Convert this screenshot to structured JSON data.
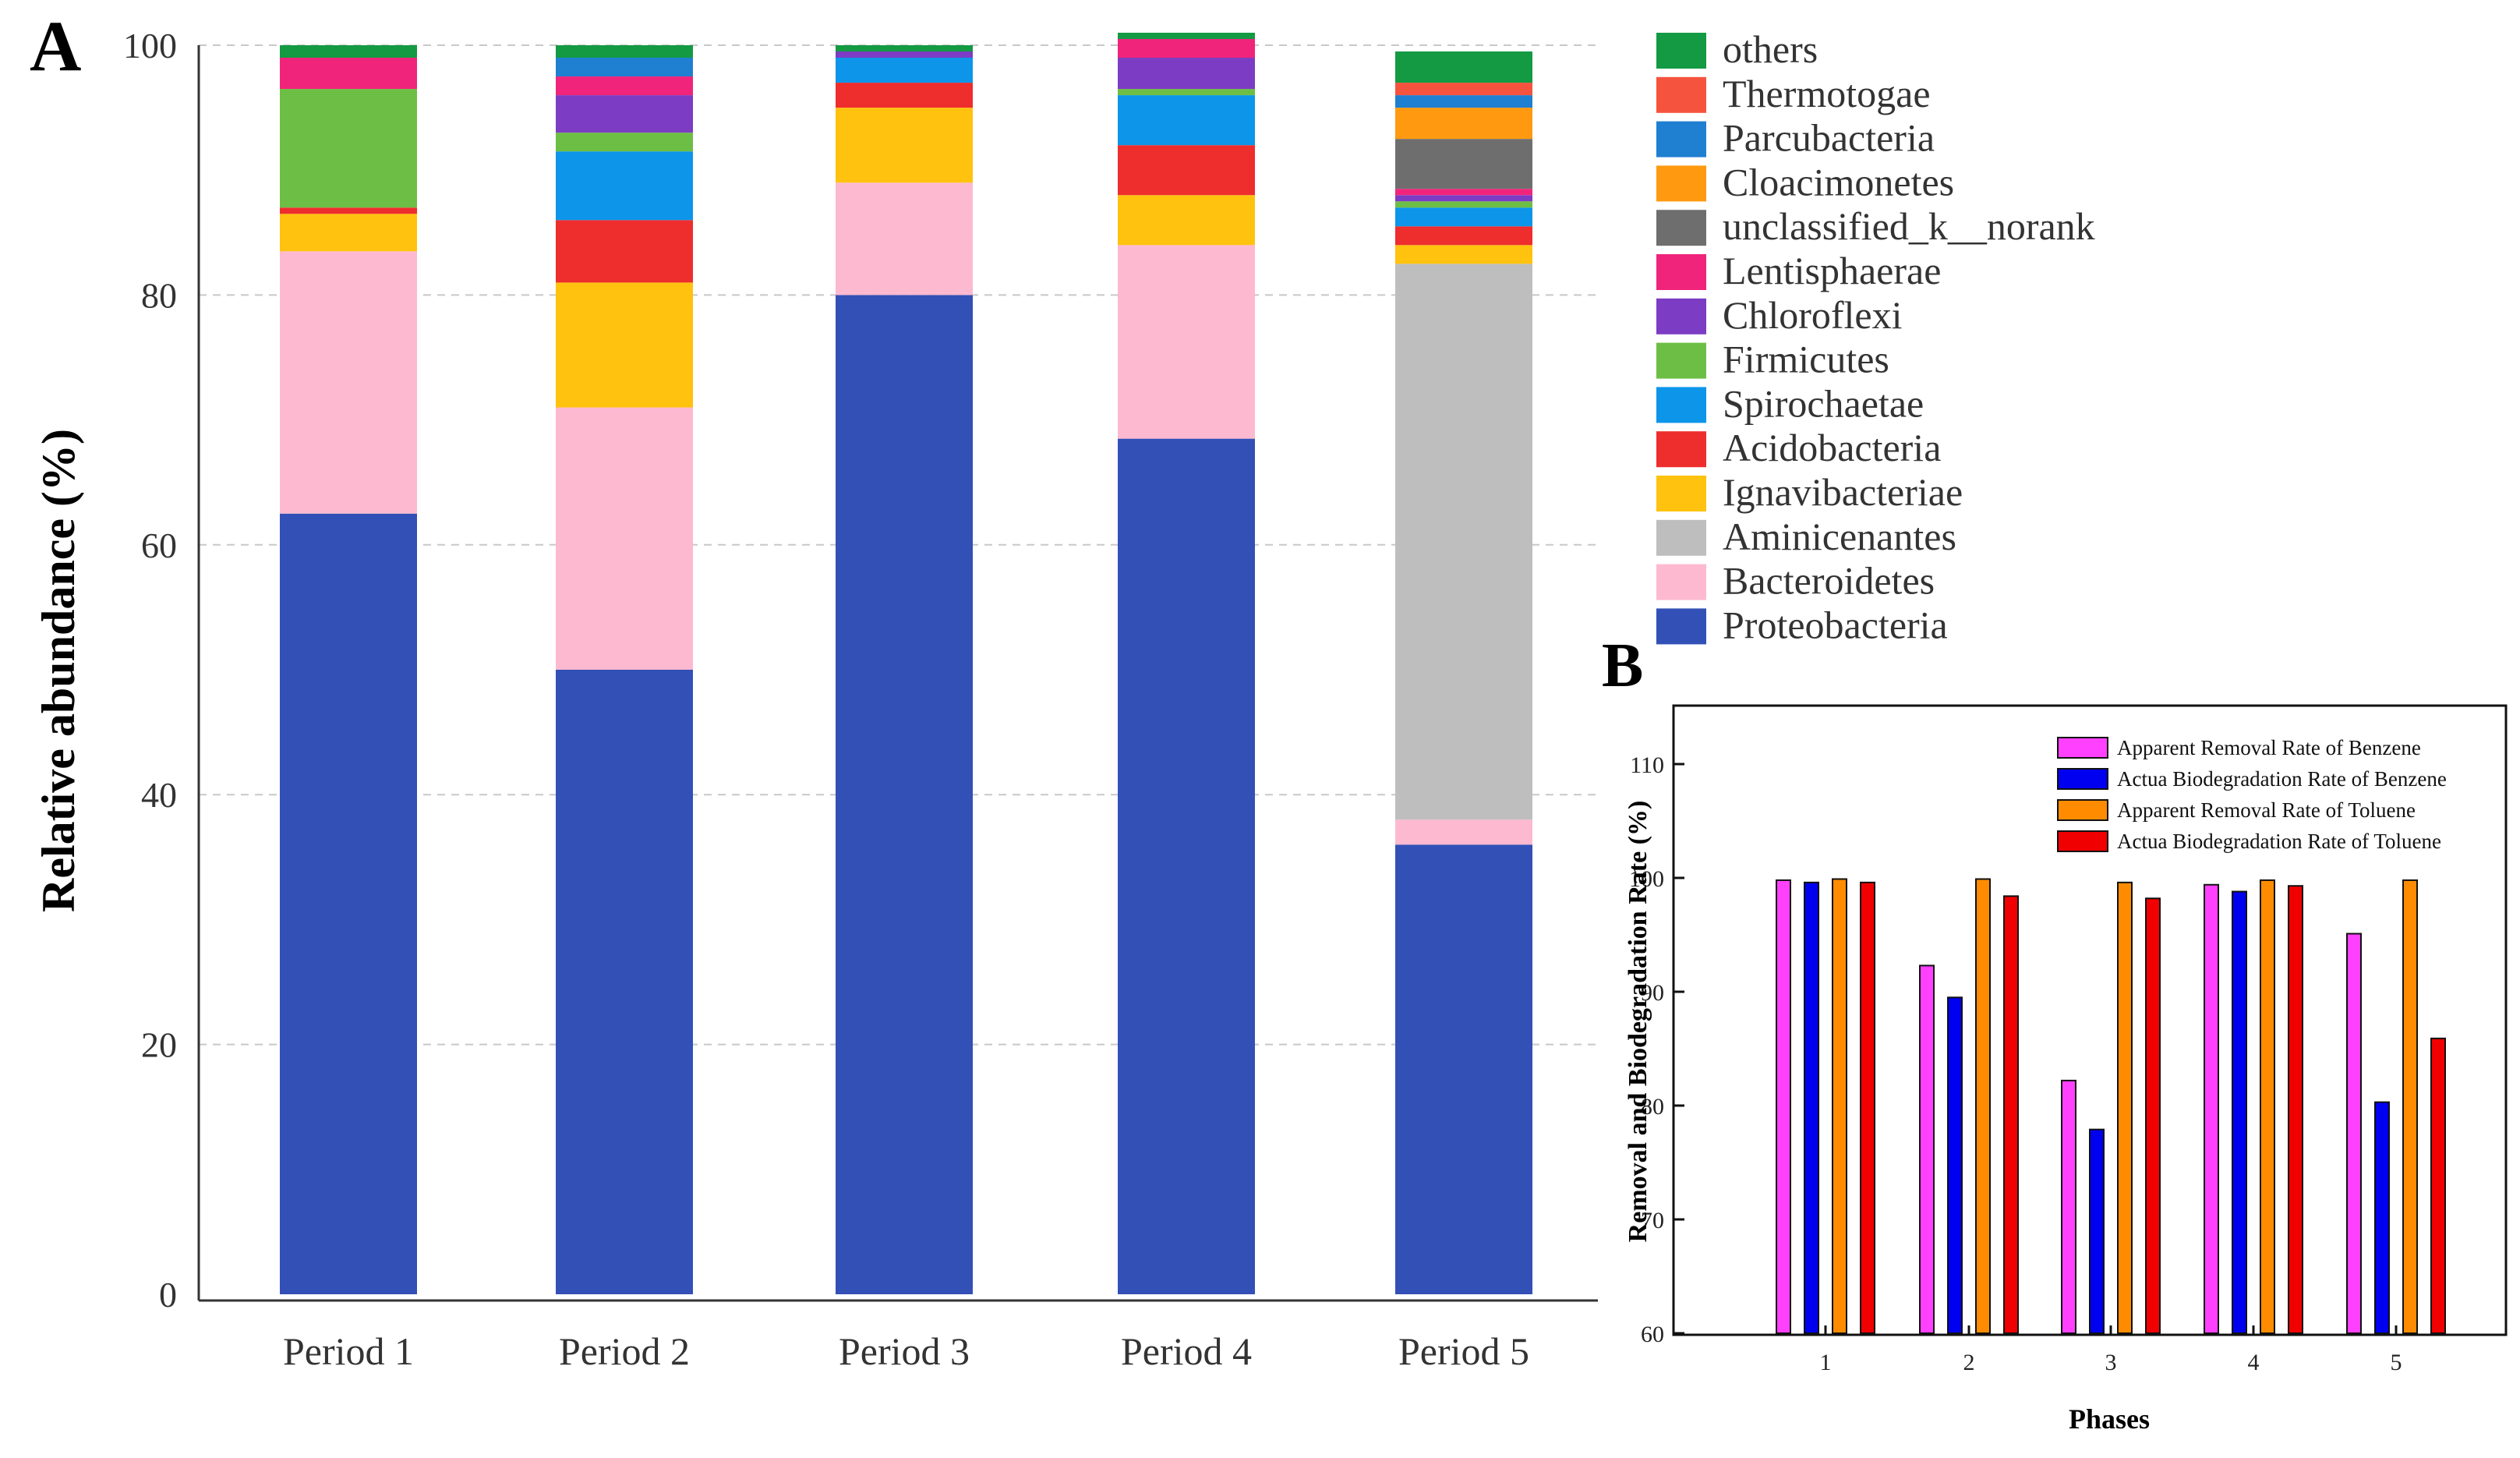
{
  "panels": {
    "A": {
      "letter": "A"
    },
    "B": {
      "letter": "B"
    }
  },
  "chart_data": [
    {
      "panel": "A",
      "type": "bar",
      "stacked": true,
      "ylabel": "Relative abundance (%)",
      "xlabel": "",
      "ylim": [
        0,
        100
      ],
      "yticks": [
        0,
        20,
        40,
        60,
        80,
        100
      ],
      "grid": true,
      "legend_position": "right",
      "categories": [
        "Period 1",
        "Period 2",
        "Period 3",
        "Period 4",
        "Period 5"
      ],
      "series": [
        {
          "name": "Proteobacteria",
          "color": "#3350B7",
          "values": [
            62.5,
            50,
            80,
            68.5,
            36
          ]
        },
        {
          "name": "Bacteroidetes",
          "color": "#FDB9D0",
          "values": [
            21,
            21,
            9,
            15.5,
            2
          ]
        },
        {
          "name": "Aminicenantes",
          "color": "#BEBEBE",
          "values": [
            0,
            0,
            0,
            0,
            44.5
          ]
        },
        {
          "name": "Ignavibacteriae",
          "color": "#FFC20E",
          "values": [
            3,
            10,
            6,
            4,
            1.5
          ]
        },
        {
          "name": "Acidobacteria",
          "color": "#EE2D2D",
          "values": [
            0.5,
            5,
            2,
            4,
            1.5
          ]
        },
        {
          "name": "Spirochaetae",
          "color": "#0C95E9",
          "values": [
            0,
            5.5,
            2,
            4,
            1.5
          ]
        },
        {
          "name": "Firmicutes",
          "color": "#6DBE45",
          "values": [
            9.5,
            1.5,
            0,
            0.5,
            0.5
          ]
        },
        {
          "name": "Chloroflexi",
          "color": "#7C3CC3",
          "values": [
            0,
            3,
            0.5,
            2.5,
            0.5
          ]
        },
        {
          "name": "Lentisphaerae",
          "color": "#F0247A",
          "values": [
            2.5,
            1.5,
            0,
            1.5,
            0.5
          ]
        },
        {
          "name": "unclassified_k__norank",
          "color": "#6E6E6E",
          "values": [
            0,
            0,
            0,
            0,
            4
          ]
        },
        {
          "name": "Cloacimonetes",
          "color": "#FF9A10",
          "values": [
            0,
            0,
            0,
            0,
            2.5
          ]
        },
        {
          "name": "Parcubacteria",
          "color": "#1F7FD1",
          "values": [
            0,
            1.5,
            0,
            0,
            1
          ]
        },
        {
          "name": "Thermotogae",
          "color": "#F5533D",
          "values": [
            0,
            0,
            0,
            0,
            1
          ]
        },
        {
          "name": "others",
          "color": "#139A43",
          "values": [
            1,
            1,
            0.5,
            0.5,
            2.5
          ]
        }
      ]
    },
    {
      "panel": "B",
      "type": "bar",
      "xlabel": "Phases",
      "ylabel": "Removal and Biodegradation Rate (%)",
      "ylim": [
        60,
        115
      ],
      "yticks": [
        60,
        70,
        80,
        90,
        100,
        110
      ],
      "grid": false,
      "legend_position": "top-right",
      "categories": [
        "1",
        "2",
        "3",
        "4",
        "5"
      ],
      "series": [
        {
          "name": "Apparent Removal Rate of Benzene",
          "color": "#FF40FF",
          "values": [
            99.8,
            92.3,
            82.2,
            99.4,
            95.1
          ]
        },
        {
          "name": "Actua Biodegradation Rate of Benzene",
          "color": "#0000F0",
          "values": [
            99.6,
            89.5,
            77.9,
            98.8,
            80.3
          ]
        },
        {
          "name": "Apparent Removal Rate of Toluene",
          "color": "#FF8C00",
          "values": [
            99.9,
            99.9,
            99.6,
            99.8,
            99.8
          ]
        },
        {
          "name": "Actua Biodegradation Rate of Toluene",
          "color": "#F00000",
          "values": [
            99.6,
            98.4,
            98.2,
            99.3,
            85.9
          ]
        }
      ]
    }
  ]
}
